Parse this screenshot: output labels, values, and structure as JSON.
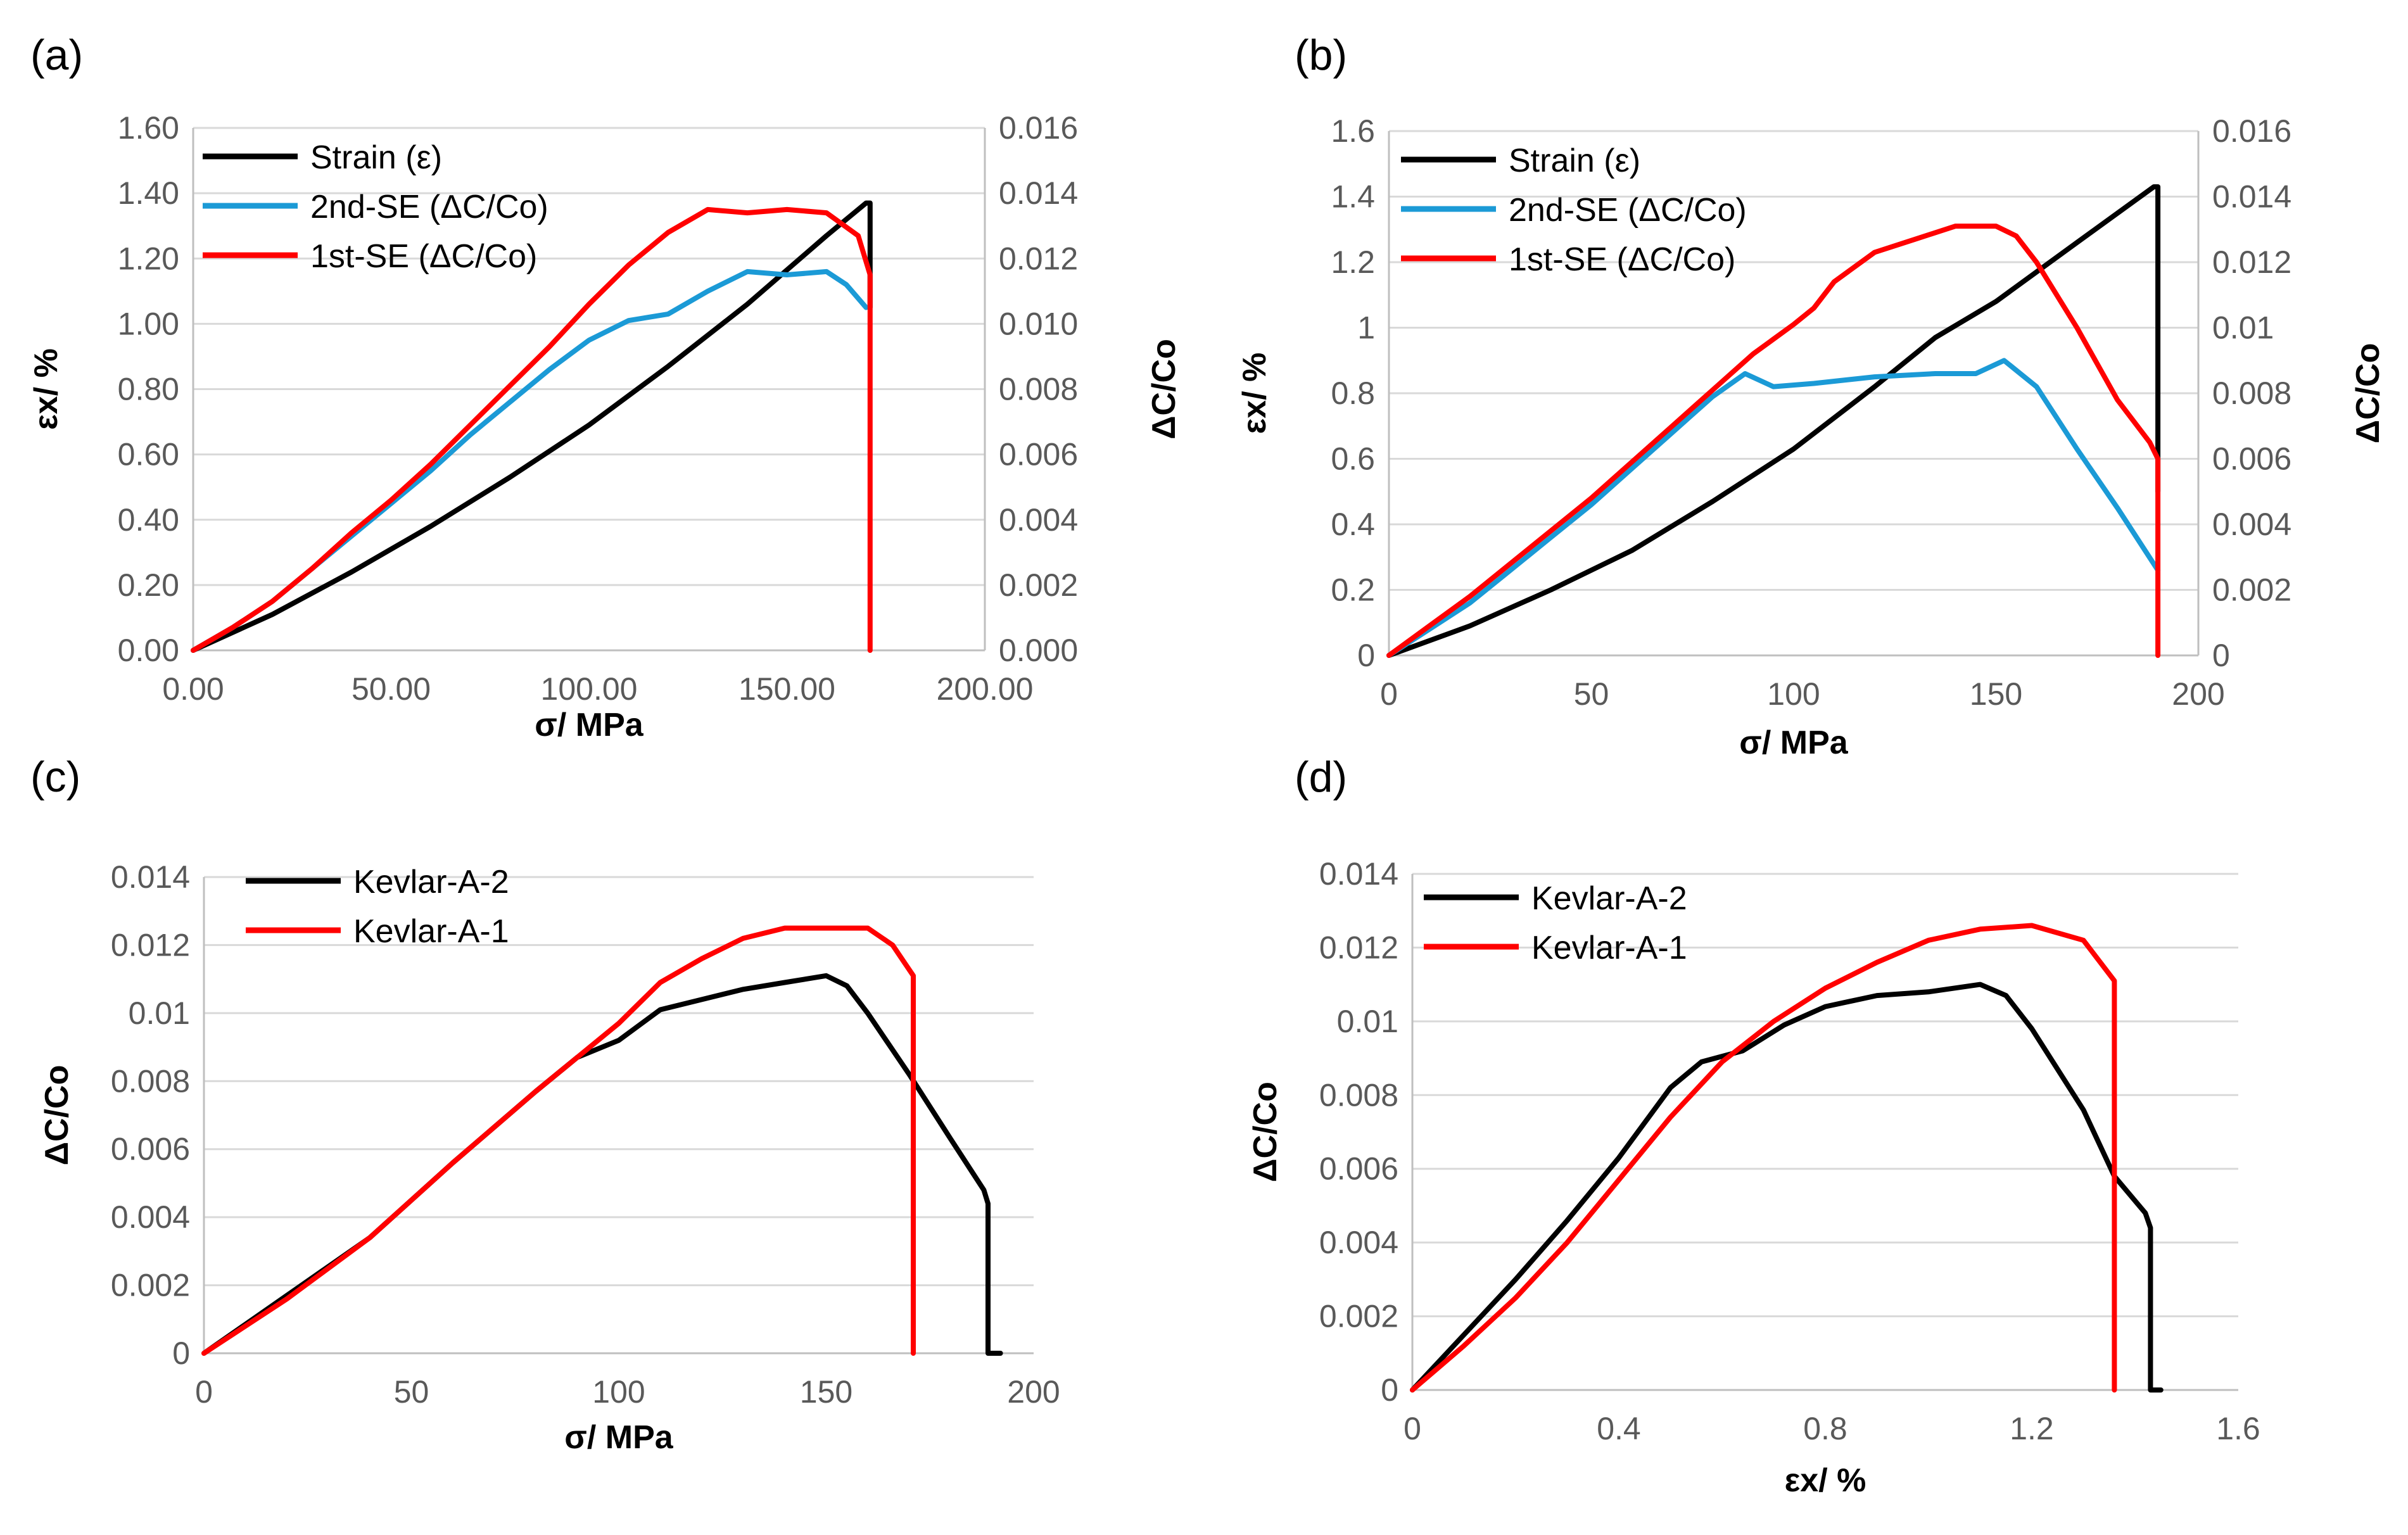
{
  "chart_data": [
    {
      "panel": "(a)",
      "type": "line",
      "xlabel": "σ/ MPa",
      "ylabel_left": "εx/ %",
      "ylabel_right": "ΔC/Co",
      "xlim": [
        0,
        200
      ],
      "ylim_left": [
        0,
        1.6
      ],
      "ylim_right": [
        0,
        0.016
      ],
      "x_ticks": [
        "0.00",
        "50.00",
        "100.00",
        "150.00",
        "200.00"
      ],
      "y_left_ticks": [
        "0.00",
        "0.20",
        "0.40",
        "0.60",
        "0.80",
        "1.00",
        "1.20",
        "1.40",
        "1.60"
      ],
      "y_right_ticks": [
        "0.000",
        "0.002",
        "0.004",
        "0.006",
        "0.008",
        "0.010",
        "0.012",
        "0.014",
        "0.016"
      ],
      "legend": "top-left",
      "series": [
        {
          "name": "Strain (ε)",
          "color": "#000000",
          "axis": "left",
          "x": [
            0,
            20,
            40,
            60,
            80,
            100,
            120,
            140,
            160,
            170,
            171,
            171,
            171
          ],
          "y": [
            0,
            0.11,
            0.24,
            0.38,
            0.53,
            0.69,
            0.87,
            1.06,
            1.27,
            1.37,
            1.37,
            1.2,
            1.05
          ]
        },
        {
          "name": "2nd-SE (ΔC/Co)",
          "color": "#1b9ad6",
          "axis": "right",
          "x": [
            0,
            10,
            20,
            30,
            40,
            50,
            60,
            70,
            80,
            90,
            100,
            110,
            120,
            130,
            140,
            150,
            160,
            165,
            170
          ],
          "y": [
            0,
            0.0007,
            0.0015,
            0.0025,
            0.0035,
            0.0045,
            0.0055,
            0.0066,
            0.0076,
            0.0086,
            0.0095,
            0.0101,
            0.0103,
            0.011,
            0.0116,
            0.0115,
            0.0116,
            0.0112,
            0.0105
          ]
        },
        {
          "name": "1st-SE (ΔC/Co)",
          "color": "#ff0000",
          "axis": "right",
          "x": [
            0,
            10,
            20,
            30,
            40,
            50,
            60,
            70,
            80,
            90,
            100,
            110,
            120,
            130,
            140,
            150,
            160,
            168,
            171,
            171,
            171
          ],
          "y": [
            0,
            0.0007,
            0.0015,
            0.0025,
            0.0036,
            0.0046,
            0.0057,
            0.0069,
            0.0081,
            0.0093,
            0.0106,
            0.0118,
            0.0128,
            0.0135,
            0.0134,
            0.0135,
            0.0134,
            0.0127,
            0.0115,
            0.006,
            0
          ]
        }
      ]
    },
    {
      "panel": "(b)",
      "type": "line",
      "xlabel": "σ/ MPa",
      "ylabel_left": "εx/ %",
      "ylabel_right": "ΔC/Co",
      "xlim": [
        0,
        200
      ],
      "ylim_left": [
        0,
        1.6
      ],
      "ylim_right": [
        0,
        0.016
      ],
      "x_ticks": [
        "0",
        "50",
        "100",
        "150",
        "200"
      ],
      "y_left_ticks": [
        "0",
        "0.2",
        "0.4",
        "0.6",
        "0.8",
        "1",
        "1.2",
        "1.4",
        "1.6"
      ],
      "y_right_ticks": [
        "0",
        "0.002",
        "0.004",
        "0.006",
        "0.008",
        "0.01",
        "0.012",
        "0.014",
        "0.016"
      ],
      "legend": "top-left",
      "series": [
        {
          "name": "Strain (ε)",
          "color": "#000000",
          "axis": "left",
          "x": [
            0,
            20,
            40,
            60,
            80,
            100,
            120,
            135,
            150,
            170,
            189,
            190,
            190
          ],
          "y": [
            0,
            0.09,
            0.2,
            0.32,
            0.47,
            0.63,
            0.82,
            0.97,
            1.08,
            1.26,
            1.43,
            1.43,
            0.5
          ]
        },
        {
          "name": "2nd-SE (ΔC/Co)",
          "color": "#1b9ad6",
          "axis": "right",
          "x": [
            0,
            10,
            20,
            30,
            40,
            50,
            60,
            70,
            80,
            88,
            95,
            105,
            120,
            135,
            145,
            152,
            160,
            170,
            180,
            190
          ],
          "y": [
            0,
            0.0008,
            0.0016,
            0.0026,
            0.0036,
            0.0046,
            0.0057,
            0.0068,
            0.0079,
            0.0086,
            0.0082,
            0.0083,
            0.0085,
            0.0086,
            0.0086,
            0.009,
            0.0082,
            0.0063,
            0.0045,
            0.0026
          ]
        },
        {
          "name": "1st-SE (ΔC/Co)",
          "color": "#ff0000",
          "axis": "right",
          "x": [
            0,
            10,
            20,
            30,
            40,
            50,
            60,
            70,
            80,
            90,
            100,
            105,
            110,
            120,
            130,
            140,
            150,
            155,
            160,
            170,
            180,
            188,
            190,
            190,
            190
          ],
          "y": [
            0,
            0.0009,
            0.0018,
            0.0028,
            0.0038,
            0.0048,
            0.0059,
            0.007,
            0.0081,
            0.0092,
            0.0101,
            0.0106,
            0.0114,
            0.0123,
            0.0127,
            0.0131,
            0.0131,
            0.0128,
            0.012,
            0.01,
            0.0078,
            0.0065,
            0.006,
            0.002,
            0
          ]
        }
      ]
    },
    {
      "panel": "(c)",
      "type": "line",
      "xlabel": "σ/ MPa",
      "ylabel_left": "ΔC/Co",
      "xlim": [
        0,
        200
      ],
      "ylim_left": [
        0,
        0.014
      ],
      "x_ticks": [
        "0",
        "50",
        "100",
        "150",
        "200"
      ],
      "y_left_ticks": [
        "0",
        "0.002",
        "0.004",
        "0.006",
        "0.008",
        "0.01",
        "0.012",
        "0.014"
      ],
      "legend": "top-left",
      "series": [
        {
          "name": "Kevlar-A-2",
          "color": "#000000",
          "axis": "left",
          "x": [
            0,
            20,
            40,
            60,
            80,
            90,
            100,
            110,
            120,
            130,
            140,
            150,
            155,
            160,
            170,
            180,
            188,
            189,
            189,
            192
          ],
          "y": [
            0,
            0.0017,
            0.0034,
            0.0056,
            0.0077,
            0.0087,
            0.0092,
            0.0101,
            0.0104,
            0.0107,
            0.0109,
            0.0111,
            0.0108,
            0.01,
            0.0082,
            0.0063,
            0.0048,
            0.0044,
            0,
            0
          ]
        },
        {
          "name": "Kevlar-A-1",
          "color": "#ff0000",
          "axis": "left",
          "x": [
            0,
            20,
            40,
            60,
            80,
            90,
            100,
            110,
            120,
            130,
            140,
            150,
            160,
            166,
            171,
            171,
            171
          ],
          "y": [
            0,
            0.0016,
            0.0034,
            0.0056,
            0.0077,
            0.0087,
            0.0097,
            0.0109,
            0.0116,
            0.0122,
            0.0125,
            0.0125,
            0.0125,
            0.012,
            0.0111,
            0.005,
            0
          ]
        }
      ]
    },
    {
      "panel": "(d)",
      "type": "line",
      "xlabel": "εx/ %",
      "ylabel_left": "ΔC/Co",
      "xlim": [
        0,
        1.6
      ],
      "ylim_left": [
        0,
        0.014
      ],
      "x_ticks": [
        "0",
        "0.4",
        "0.8",
        "1.2",
        "1.6"
      ],
      "y_left_ticks": [
        "0",
        "0.002",
        "0.004",
        "0.006",
        "0.008",
        "0.01",
        "0.012",
        "0.014"
      ],
      "legend": "top-left",
      "series": [
        {
          "name": "Kevlar-A-2",
          "color": "#000000",
          "axis": "left",
          "x": [
            0,
            0.1,
            0.2,
            0.3,
            0.4,
            0.5,
            0.56,
            0.64,
            0.72,
            0.8,
            0.9,
            1.0,
            1.1,
            1.15,
            1.2,
            1.3,
            1.36,
            1.42,
            1.43,
            1.43,
            1.45
          ],
          "y": [
            0,
            0.0015,
            0.003,
            0.0046,
            0.0063,
            0.0082,
            0.0089,
            0.0092,
            0.0099,
            0.0104,
            0.0107,
            0.0108,
            0.011,
            0.0107,
            0.0098,
            0.0076,
            0.0058,
            0.0048,
            0.0044,
            0,
            0
          ]
        },
        {
          "name": "Kevlar-A-1",
          "color": "#ff0000",
          "axis": "left",
          "x": [
            0,
            0.1,
            0.2,
            0.3,
            0.4,
            0.5,
            0.6,
            0.7,
            0.8,
            0.9,
            1.0,
            1.1,
            1.2,
            1.3,
            1.36,
            1.36,
            1.36
          ],
          "y": [
            0,
            0.0012,
            0.0025,
            0.004,
            0.0057,
            0.0074,
            0.0089,
            0.01,
            0.0109,
            0.0116,
            0.0122,
            0.0125,
            0.0126,
            0.0122,
            0.0111,
            0.005,
            0
          ]
        }
      ]
    }
  ]
}
